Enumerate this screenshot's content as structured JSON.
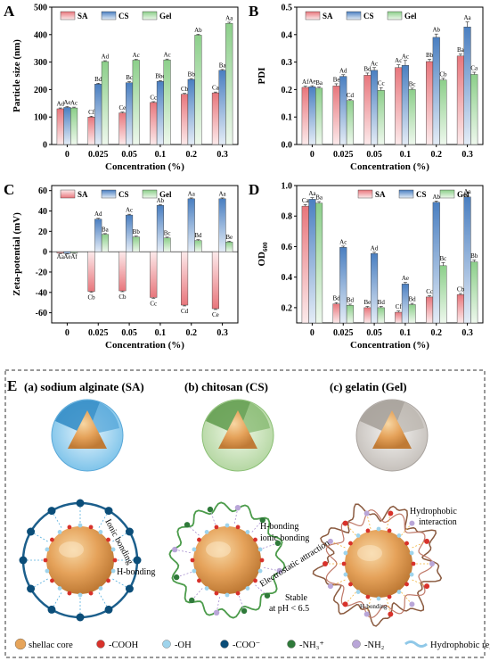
{
  "colors": {
    "SA": "#e8767c",
    "CS": "#4a7fc1",
    "Gel": "#8ccf8a"
  },
  "categories": [
    "0",
    "0.025",
    "0.05",
    "0.1",
    "0.2",
    "0.3"
  ],
  "chart_data": [
    {
      "panel": "A",
      "type": "bar",
      "ylabel": "Particle size (nm)",
      "xlabel": "Concentration (%)",
      "ylim": [
        0,
        500
      ],
      "yticks": [
        0,
        100,
        200,
        300,
        400,
        500
      ],
      "legend": {
        "position": "top-left",
        "entries": [
          "SA",
          "CS",
          "Gel"
        ]
      },
      "series": [
        {
          "name": "SA",
          "values": [
            130,
            100,
            115,
            153,
            183,
            188
          ],
          "errors": [
            3,
            3,
            3,
            3,
            3,
            3
          ],
          "labels": [
            "Ad",
            "Cf",
            "Ce",
            "Cc",
            "Cb",
            "Ca"
          ]
        },
        {
          "name": "CS",
          "values": [
            135,
            220,
            225,
            230,
            237,
            270
          ],
          "errors": [
            3,
            3,
            4,
            3,
            3,
            3
          ],
          "labels": [
            "Ae",
            "Bd",
            "Bc",
            "Bbc",
            "Bb",
            "Ba"
          ]
        },
        {
          "name": "Gel",
          "values": [
            133,
            302,
            307,
            308,
            398,
            441
          ],
          "errors": [
            3,
            3,
            3,
            3,
            3,
            4
          ],
          "labels": [
            "Ac",
            "Ad",
            "Ac",
            "Ac",
            "Ab",
            "Aa"
          ]
        }
      ]
    },
    {
      "panel": "B",
      "type": "bar",
      "ylabel": "PDI",
      "xlabel": "Concentration (%)",
      "ylim": [
        0,
        0.5
      ],
      "yticks": [
        0.0,
        0.1,
        0.2,
        0.3,
        0.4,
        0.5
      ],
      "legend": {
        "position": "top-left",
        "entries": [
          "SA",
          "CS",
          "Gel"
        ]
      },
      "series": [
        {
          "name": "SA",
          "values": [
            0.208,
            0.213,
            0.252,
            0.28,
            0.302,
            0.322
          ],
          "errors": [
            0.004,
            0.008,
            0.008,
            0.01,
            0.008,
            0.007
          ],
          "labels": [
            "Af",
            "Be",
            "Bd",
            "Ac",
            "Bb",
            "Ba"
          ]
        },
        {
          "name": "CS",
          "values": [
            0.21,
            0.248,
            0.27,
            0.288,
            0.39,
            0.428
          ],
          "errors": [
            0.004,
            0.006,
            0.01,
            0.018,
            0.012,
            0.018
          ],
          "labels": [
            "Ae",
            "Ad",
            "Ac",
            "Ac",
            "Ab",
            "Aa"
          ]
        },
        {
          "name": "Gel",
          "values": [
            0.205,
            0.16,
            0.197,
            0.2,
            0.235,
            0.255
          ],
          "errors": [
            0.004,
            0.004,
            0.01,
            0.005,
            0.006,
            0.008
          ],
          "labels": [
            "Ba",
            "Cd",
            "Cc",
            "Bc",
            "Cb",
            "Ca"
          ]
        }
      ]
    },
    {
      "panel": "C",
      "type": "bar",
      "ylabel": "Zeta-potential (mV)",
      "xlabel": "Concentration (%)",
      "ylim": [
        -70,
        65
      ],
      "yticks": [
        -60,
        -40,
        -20,
        0,
        20,
        40,
        60
      ],
      "legend": {
        "position": "top-left",
        "entries": [
          "SA",
          "CS",
          "Gel"
        ]
      },
      "series": [
        {
          "name": "SA",
          "values": [
            -1.5,
            -39,
            -38.5,
            -45,
            -52.5,
            -56
          ],
          "errors": [
            0.5,
            0.8,
            0.8,
            0.8,
            0.8,
            0.8
          ],
          "labels": [
            "Aa",
            "Cb",
            "Cb",
            "Cc",
            "Cd",
            "Ce"
          ]
        },
        {
          "name": "CS",
          "values": [
            -1.8,
            32,
            36,
            45.5,
            52,
            52
          ],
          "errors": [
            0.5,
            0.8,
            0.8,
            0.8,
            0.8,
            0.8
          ],
          "labels": [
            "Ae",
            "Ad",
            "Ac",
            "Ab",
            "Aa",
            "Aa"
          ]
        },
        {
          "name": "Gel",
          "values": [
            -1.2,
            17,
            14.5,
            13.5,
            11,
            9.5
          ],
          "errors": [
            0.5,
            0.8,
            0.8,
            0.8,
            0.8,
            0.8
          ],
          "labels": [
            "Af",
            "Ba",
            "Bb",
            "Bc",
            "Bd",
            "Be"
          ]
        }
      ]
    },
    {
      "panel": "D",
      "type": "bar",
      "ylabel": "OD",
      "ylabel_sub": "600",
      "xlabel": "Concentration (%)",
      "ylim": [
        0.1,
        1.0
      ],
      "yticks": [
        0.2,
        0.4,
        0.6,
        0.8,
        1.0
      ],
      "legend": {
        "position": "top-right",
        "entries": [
          "SA",
          "CS",
          "Gel"
        ]
      },
      "series": [
        {
          "name": "SA",
          "values": [
            0.865,
            0.225,
            0.2,
            0.17,
            0.27,
            0.285
          ],
          "errors": [
            0.01,
            0.008,
            0.008,
            0.008,
            0.008,
            0.008
          ],
          "labels": [
            "Ca",
            "Bd",
            "Be",
            "Cf",
            "Cc",
            "Cb"
          ]
        },
        {
          "name": "CS",
          "values": [
            0.91,
            0.595,
            0.555,
            0.355,
            0.89,
            0.925
          ],
          "errors": [
            0.01,
            0.008,
            0.008,
            0.01,
            0.008,
            0.008
          ],
          "labels": [
            "Aa",
            "Ac",
            "Ad",
            "Ae",
            "Ab",
            "Aa"
          ]
        },
        {
          "name": "Gel",
          "values": [
            0.885,
            0.215,
            0.2,
            0.22,
            0.475,
            0.5
          ],
          "errors": [
            0.01,
            0.008,
            0.008,
            0.008,
            0.02,
            0.012
          ],
          "labels": [
            "Ba",
            "Bd",
            "Bd",
            "Bd",
            "Bc",
            "Bb"
          ]
        }
      ]
    }
  ],
  "schematic": {
    "panel_label": "E",
    "titles": [
      "(a)  sodium alginate (SA)",
      "(b)  chitosan (CS)",
      "(c)  gelatin (Gel)"
    ],
    "annotations": {
      "sa_ionic": "Ionic bonding",
      "sa_h": "H-bonding",
      "cs_h": "H-bonding",
      "cs_ionic": "ionic bonding",
      "cs_electro": "Electrostatic attraction",
      "cs_stable_1": "Stable",
      "cs_stable_2": "at pH < 6.5",
      "gel_hydro_1": "Hydrophobic",
      "gel_hydro_2": "interaction",
      "gel_h": "H-bonding"
    },
    "legend": [
      "shellac core",
      "-COOH",
      "-OH",
      "-COO⁻",
      "-NH₃⁺",
      "-NH₂",
      "Hydrophobic region"
    ],
    "legend_colors": [
      "#e6a45a",
      "#d8322b",
      "#9fd4ec",
      "#0b4d78",
      "#2f7a3a",
      "#b9a6d8",
      "#8fc8e8"
    ]
  }
}
